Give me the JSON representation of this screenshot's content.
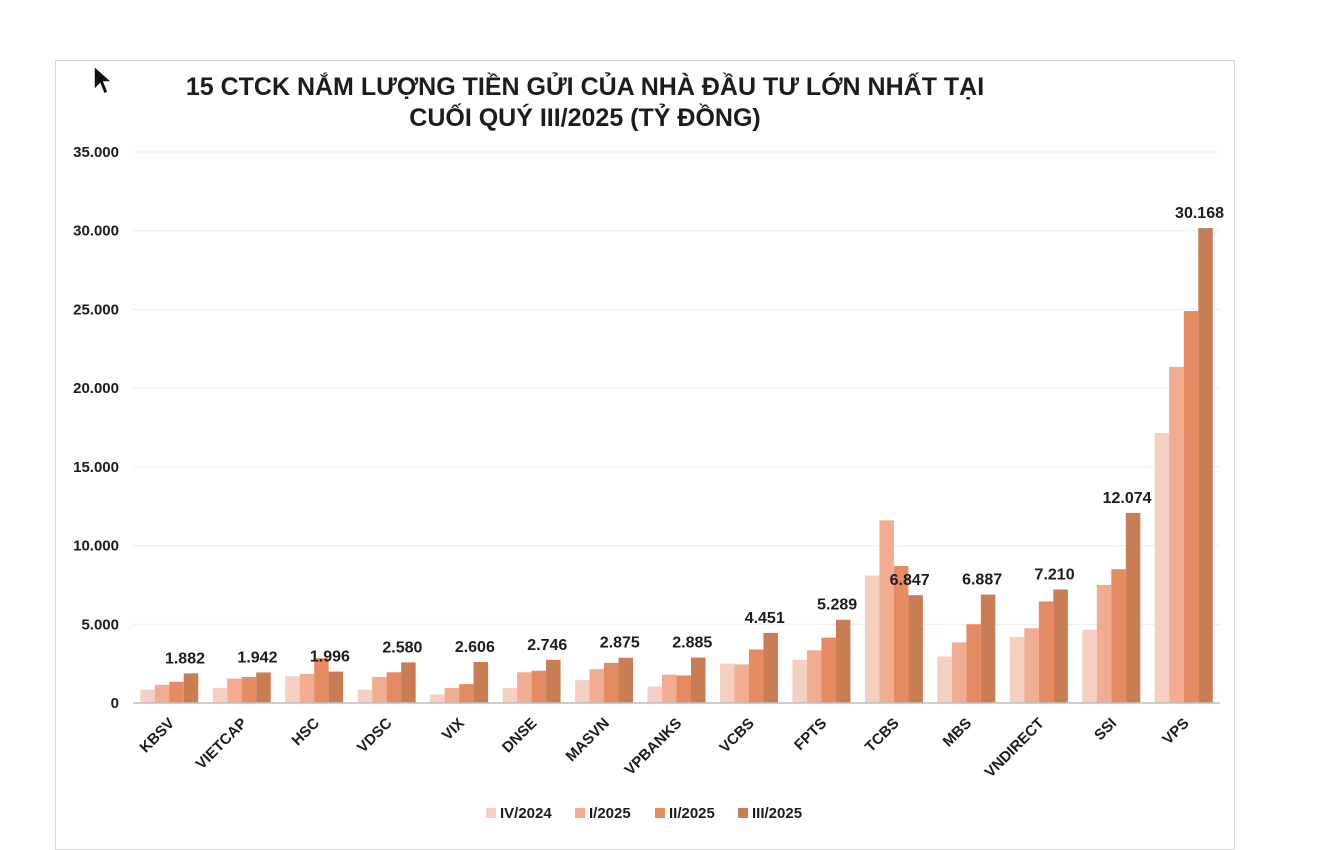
{
  "chart_data": {
    "type": "bar",
    "title_lines": [
      "15 CTCK NẮM LƯỢNG TIỀN GỬI CỦA NHÀ ĐẦU TƯ LỚN NHẤT TẠI",
      "CUỐI QUÝ III/2025 (TỶ ĐỒNG)"
    ],
    "categories": [
      "KBSV",
      "VIETCAP",
      "HSC",
      "VDSC",
      "VIX",
      "DNSE",
      "MASVN",
      "VPBANKS",
      "VCBS",
      "FPTS",
      "TCBS",
      "MBS",
      "VNDIRECT",
      "SSI",
      "VPS"
    ],
    "series": [
      {
        "name": "IV/2024",
        "color": "#f5cfc2",
        "values": [
          850,
          950,
          1700,
          850,
          550,
          950,
          1450,
          1050,
          2500,
          2750,
          8100,
          2950,
          4200,
          4650,
          17150
        ]
      },
      {
        "name": "I/2025",
        "color": "#f2ac92",
        "values": [
          1150,
          1550,
          1850,
          1650,
          950,
          1950,
          2150,
          1800,
          2450,
          3350,
          11600,
          3850,
          4750,
          7500,
          21350
        ]
      },
      {
        "name": "II/2025",
        "color": "#e58b62",
        "values": [
          1350,
          1650,
          2850,
          1950,
          1200,
          2050,
          2550,
          1750,
          3400,
          4150,
          8700,
          5000,
          6450,
          8500,
          24900
        ]
      },
      {
        "name": "III/2025",
        "color": "#c97d55",
        "values": [
          1882,
          1942,
          1996,
          2580,
          2606,
          2746,
          2875,
          2885,
          4451,
          5289,
          6847,
          6887,
          7210,
          12074,
          30168
        ]
      }
    ],
    "data_labels": [
      "1.882",
      "1.942",
      "1.996",
      "2.580",
      "2.606",
      "2.746",
      "2.875",
      "2.885",
      "4.451",
      "5.289",
      "6.847",
      "6.887",
      "7.210",
      "12.074",
      "30.168"
    ],
    "y_ticks": [
      0,
      5000,
      10000,
      15000,
      20000,
      25000,
      30000,
      35000
    ],
    "y_tick_labels": [
      "0",
      "5.000",
      "10.000",
      "15.000",
      "20.000",
      "25.000",
      "30.000",
      "35.000"
    ],
    "ylim": [
      0,
      35000
    ],
    "grid": true,
    "legend_position": "bottom"
  },
  "cursor": "mouse-pointer-icon"
}
